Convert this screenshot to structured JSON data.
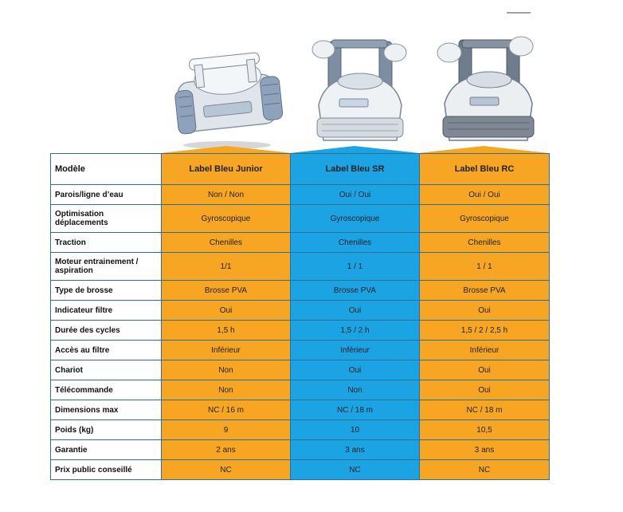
{
  "table": {
    "header": [
      "Modèle",
      "Label Bleu Junior",
      "Label Bleu SR",
      "Label Bleu RC"
    ],
    "rows": [
      {
        "label": "Parois/ligne d’eau",
        "values": [
          "Non / Non",
          "Oui / Oui",
          "Oui / Oui"
        ]
      },
      {
        "label": "Optimisation\ndéplacements",
        "values": [
          "Gyroscopique",
          "Gyroscopique",
          "Gyroscopique"
        ]
      },
      {
        "label": "Traction",
        "values": [
          "Chenilles",
          "Chenilles",
          "Chenilles"
        ]
      },
      {
        "label": "Moteur entrainement /\naspiration",
        "values": [
          "1/1",
          "1 / 1",
          "1 / 1"
        ]
      },
      {
        "label": "Type de brosse",
        "values": [
          "Brosse PVA",
          "Brosse PVA",
          "Brosse PVA"
        ]
      },
      {
        "label": "Indicateur filtre",
        "values": [
          "Oui",
          "Oui",
          "Oui"
        ]
      },
      {
        "label": "Durée des cycles",
        "values": [
          "1,5 h",
          "1,5 / 2 h",
          "1,5 / 2 / 2,5 h"
        ]
      },
      {
        "label": "Accès au filtre",
        "values": [
          "Inférieur",
          "Inférieur",
          "Inférieur"
        ]
      },
      {
        "label": "Chariot",
        "values": [
          "Non",
          "Oui",
          "Oui"
        ]
      },
      {
        "label": "Télécommande",
        "values": [
          "Non",
          "Non",
          "Oui"
        ]
      },
      {
        "label": "Dimensions max",
        "values": [
          "NC / 16 m",
          "NC / 18 m",
          "NC / 18 m"
        ]
      },
      {
        "label": "Poids (kg)",
        "values": [
          "9",
          "10",
          "10,5"
        ]
      },
      {
        "label": "Garantie",
        "values": [
          "2 ans",
          "3 ans",
          "3 ans"
        ]
      },
      {
        "label": "Prix public conseillé",
        "values": [
          "NC",
          "NC",
          "NC"
        ]
      }
    ]
  },
  "colors": {
    "orange": "#f6a623",
    "blue": "#1ba3e4",
    "border": "#2f6f96"
  },
  "images": [
    "robot-junior",
    "robot-sr",
    "robot-rc"
  ]
}
